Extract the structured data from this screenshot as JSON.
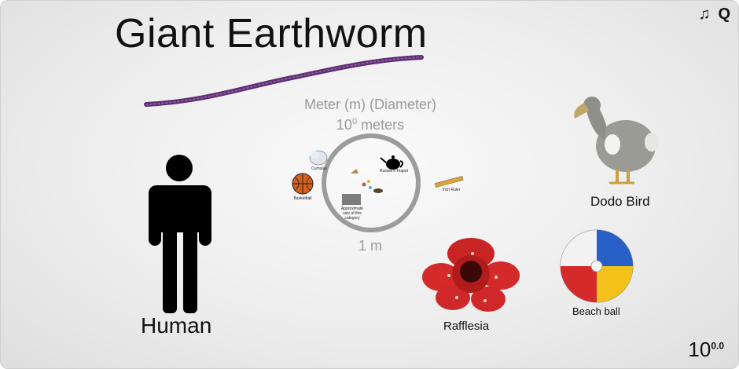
{
  "title": "Giant Earthworm",
  "controls": {
    "music_label": "♫",
    "quit_label": "Q"
  },
  "unit": {
    "name": "Meter (m) (Diameter)",
    "base": "10",
    "exponent": "0",
    "suffix": " meters"
  },
  "scale_label": "1 m",
  "labels": {
    "human": "Human",
    "dodo": "Dodo Bird",
    "rafflesia": "Rafflesia",
    "beach_ball": "Beach ball",
    "basketball": "Basketball",
    "teapot": "Russell's Teapot",
    "inch_ruler": "Inch Ruler",
    "cloud": "Cumulus",
    "sign": "Approximate size of this category"
  },
  "power": {
    "base": "10",
    "exponent": "0.0"
  },
  "colors": {
    "worm": "#5a2e6e",
    "ring": "#9c9c9c",
    "rafflesia": "#d42a2a",
    "dodo": "#9b9b95"
  }
}
